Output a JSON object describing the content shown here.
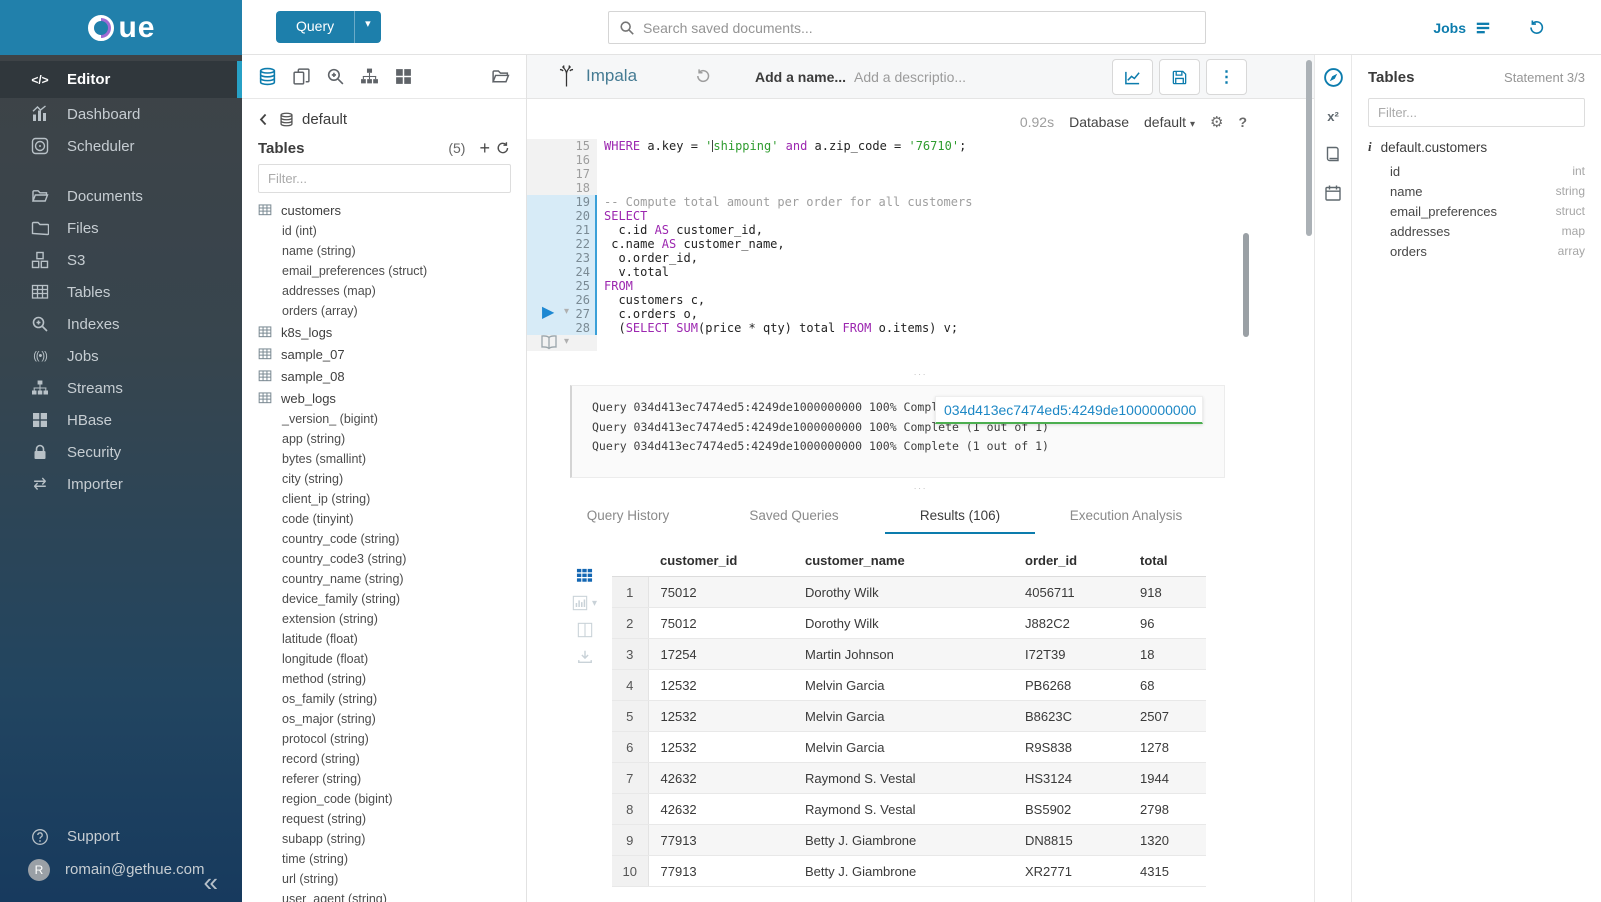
{
  "brand": {
    "name": "Hue",
    "logo_text": "ue"
  },
  "topbar": {
    "query_label": "Query",
    "search_placeholder": "Search saved documents...",
    "jobs_label": "Jobs"
  },
  "sidebar": {
    "items": [
      {
        "label": "Editor",
        "icon": "code",
        "active": true
      },
      {
        "label": "Dashboard",
        "icon": "dashboard"
      },
      {
        "label": "Scheduler",
        "icon": "scheduler"
      },
      {
        "label": "Documents",
        "icon": "documents",
        "gap_before": true
      },
      {
        "label": "Files",
        "icon": "files"
      },
      {
        "label": "S3",
        "icon": "s3"
      },
      {
        "label": "Tables",
        "icon": "tables"
      },
      {
        "label": "Indexes",
        "icon": "indexes"
      },
      {
        "label": "Jobs",
        "icon": "jobs"
      },
      {
        "label": "Streams",
        "icon": "streams"
      },
      {
        "label": "HBase",
        "icon": "hbase"
      },
      {
        "label": "Security",
        "icon": "security"
      },
      {
        "label": "Importer",
        "icon": "importer"
      }
    ],
    "footer": {
      "support": "Support",
      "user": "romain@gethue.com",
      "avatar_initial": "R"
    }
  },
  "left_panel": {
    "database": "default",
    "title": "Tables",
    "count": "(5)",
    "filter_placeholder": "Filter...",
    "tables": [
      {
        "name": "customers",
        "columns": [
          "id (int)",
          "name (string)",
          "email_preferences (struct)",
          "addresses (map)",
          "orders (array)"
        ]
      },
      {
        "name": "k8s_logs",
        "columns": []
      },
      {
        "name": "sample_07",
        "columns": []
      },
      {
        "name": "sample_08",
        "columns": []
      },
      {
        "name": "web_logs",
        "columns": [
          "_version_ (bigint)",
          "app (string)",
          "bytes (smallint)",
          "city (string)",
          "client_ip (string)",
          "code (tinyint)",
          "country_code (string)",
          "country_code3 (string)",
          "country_name (string)",
          "device_family (string)",
          "extension (string)",
          "latitude (float)",
          "longitude (float)",
          "method (string)",
          "os_family (string)",
          "os_major (string)",
          "protocol (string)",
          "record (string)",
          "referer (string)",
          "region_code (bigint)",
          "request (string)",
          "subapp (string)",
          "time (string)",
          "url (string)",
          "user_agent (string)"
        ]
      }
    ]
  },
  "editor": {
    "engine": "Impala",
    "name_placeholder": "Add a name...",
    "desc_placeholder": "Add a descriptio...",
    "duration": "0.92s",
    "database_label": "Database",
    "database_value": "default",
    "help_label": "?",
    "code_lines": [
      {
        "n": 15,
        "h": false,
        "t": [
          [
            "k",
            "WHERE"
          ],
          [
            "p",
            " a.key = "
          ],
          [
            "s",
            "'"
          ],
          [
            "caret",
            ""
          ],
          [
            "s",
            "shipping'"
          ],
          [
            "k",
            " and"
          ],
          [
            "p",
            " a.zip_code = "
          ],
          [
            "s",
            "'76710'"
          ],
          [
            "p",
            ";"
          ]
        ]
      },
      {
        "n": 16,
        "h": false,
        "t": []
      },
      {
        "n": 17,
        "h": false,
        "t": []
      },
      {
        "n": 18,
        "h": false,
        "t": []
      },
      {
        "n": 19,
        "h": true,
        "t": [
          [
            "c",
            "-- Compute total amount per order for all customers"
          ]
        ]
      },
      {
        "n": 20,
        "h": true,
        "t": [
          [
            "k",
            "SELECT"
          ]
        ]
      },
      {
        "n": 21,
        "h": true,
        "t": [
          [
            "p",
            "  c.id "
          ],
          [
            "k",
            "AS"
          ],
          [
            "p",
            " customer_id,"
          ]
        ]
      },
      {
        "n": 22,
        "h": true,
        "t": [
          [
            "p",
            " c.name "
          ],
          [
            "k",
            "AS"
          ],
          [
            "p",
            " customer_name,"
          ]
        ]
      },
      {
        "n": 23,
        "h": true,
        "t": [
          [
            "p",
            "  o.order_id,"
          ]
        ]
      },
      {
        "n": 24,
        "h": true,
        "t": [
          [
            "p",
            "  v.total"
          ]
        ]
      },
      {
        "n": 25,
        "h": true,
        "t": [
          [
            "k",
            "FROM"
          ]
        ]
      },
      {
        "n": 26,
        "h": true,
        "t": [
          [
            "p",
            "  customers c,"
          ]
        ]
      },
      {
        "n": 27,
        "h": true,
        "t": [
          [
            "p",
            "  c.orders o,"
          ]
        ]
      },
      {
        "n": 28,
        "h": true,
        "t": [
          [
            "p",
            "  ("
          ],
          [
            "k",
            "SELECT"
          ],
          [
            "p",
            " "
          ],
          [
            "k",
            "SUM"
          ],
          [
            "p",
            "(price * qty) total "
          ],
          [
            "k",
            "FROM"
          ],
          [
            "p",
            " o.items) v;"
          ]
        ]
      }
    ]
  },
  "log": {
    "lines": [
      "Query 034d413ec7474ed5:4249de1000000000 100% Complete (1 out of 1)",
      "Query 034d413ec7474ed5:4249de1000000000 100% Complete (1 out of 1)",
      "Query 034d413ec7474ed5:4249de1000000000 100% Complete (1 out of 1)"
    ],
    "overlay_text": "034d413ec7474ed5:4249de1000000000"
  },
  "results": {
    "tabs": [
      {
        "label": "Query History"
      },
      {
        "label": "Saved Queries"
      },
      {
        "label": "Results (106)",
        "active": true
      },
      {
        "label": "Execution Analysis"
      }
    ],
    "columns": [
      "customer_id",
      "customer_name",
      "order_id",
      "total"
    ],
    "rows": [
      [
        "1",
        "75012",
        "Dorothy Wilk",
        "4056711",
        "918"
      ],
      [
        "2",
        "75012",
        "Dorothy Wilk",
        "J882C2",
        "96"
      ],
      [
        "3",
        "17254",
        "Martin Johnson",
        "I72T39",
        "18"
      ],
      [
        "4",
        "12532",
        "Melvin Garcia",
        "PB6268",
        "68"
      ],
      [
        "5",
        "12532",
        "Melvin Garcia",
        "B8623C",
        "2507"
      ],
      [
        "6",
        "12532",
        "Melvin Garcia",
        "R9S838",
        "1278"
      ],
      [
        "7",
        "42632",
        "Raymond S. Vestal",
        "HS3124",
        "1944"
      ],
      [
        "8",
        "42632",
        "Raymond S. Vestal",
        "BS5902",
        "2798"
      ],
      [
        "9",
        "77913",
        "Betty J. Giambrone",
        "DN8815",
        "1320"
      ],
      [
        "10",
        "77913",
        "Betty J. Giambrone",
        "XR2771",
        "4315"
      ]
    ]
  },
  "right_panel": {
    "title": "Tables",
    "statement": "Statement 3/3",
    "filter_placeholder": "Filter...",
    "table": "default.customers",
    "columns": [
      {
        "name": "id",
        "type": "int"
      },
      {
        "name": "name",
        "type": "string"
      },
      {
        "name": "email_preferences",
        "type": "struct"
      },
      {
        "name": "addresses",
        "type": "map"
      },
      {
        "name": "orders",
        "type": "array"
      }
    ]
  }
}
